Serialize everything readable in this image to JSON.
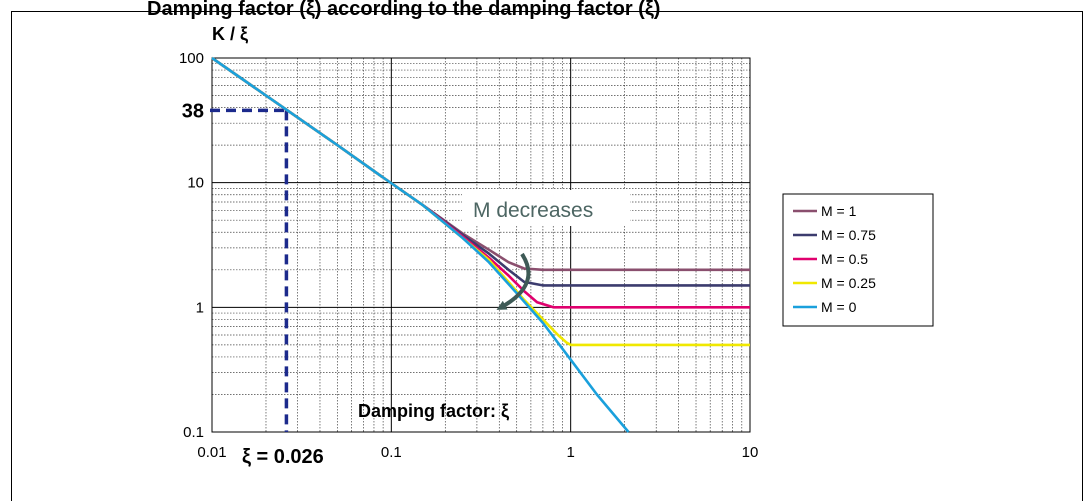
{
  "title_partial": "Damping factor (ξ) according to the damping factor (ξ)",
  "chart_data": {
    "type": "line",
    "title": "",
    "ylabel": "K / ξ",
    "xlabel": "Damping factor: ξ",
    "x_scale": "log",
    "y_scale": "log",
    "xlim": [
      0.01,
      10
    ],
    "ylim": [
      0.1,
      100
    ],
    "x_ticks": [
      "0.01",
      "0.1",
      "1",
      "10"
    ],
    "y_ticks": [
      "100",
      "10",
      "1",
      "0.1"
    ],
    "grid": true,
    "legend_position": "right",
    "series": [
      {
        "name": "M = 1",
        "color": "#8a4f6e",
        "x": [
          0.01,
          0.026,
          0.05,
          0.09,
          0.15,
          0.25,
          0.35,
          0.45,
          0.55,
          0.7,
          1,
          2,
          5,
          10
        ],
        "y": [
          100,
          38.5,
          20,
          11,
          6.6,
          3.9,
          2.9,
          2.3,
          2.05,
          2.0,
          2.0,
          2.0,
          2.0,
          2.0
        ]
      },
      {
        "name": "M = 0.75",
        "color": "#3c3c6e",
        "x": [
          0.01,
          0.026,
          0.05,
          0.09,
          0.15,
          0.25,
          0.35,
          0.45,
          0.55,
          0.7,
          1,
          2,
          5,
          10
        ],
        "y": [
          100,
          38.5,
          20,
          11,
          6.6,
          3.8,
          2.7,
          2.0,
          1.6,
          1.5,
          1.5,
          1.5,
          1.5,
          1.5
        ]
      },
      {
        "name": "M = 0.5",
        "color": "#e0006e",
        "x": [
          0.01,
          0.026,
          0.05,
          0.09,
          0.15,
          0.25,
          0.35,
          0.45,
          0.55,
          0.65,
          0.8,
          1,
          2,
          5,
          10
        ],
        "y": [
          100,
          38.5,
          20,
          11,
          6.6,
          3.7,
          2.5,
          1.8,
          1.35,
          1.1,
          1.0,
          1.0,
          1.0,
          1.0,
          1.0
        ]
      },
      {
        "name": "M = 0.25",
        "color": "#f0e800",
        "x": [
          0.01,
          0.026,
          0.05,
          0.09,
          0.15,
          0.25,
          0.35,
          0.45,
          0.55,
          0.7,
          0.85,
          0.95,
          1,
          2,
          5,
          10
        ],
        "y": [
          100,
          38.5,
          20,
          11,
          6.6,
          3.6,
          2.4,
          1.6,
          1.15,
          0.8,
          0.6,
          0.52,
          0.5,
          0.5,
          0.5,
          0.5
        ]
      },
      {
        "name": "M = 0",
        "color": "#1aa0dc",
        "x": [
          0.01,
          0.026,
          0.05,
          0.09,
          0.15,
          0.25,
          0.35,
          0.5,
          0.7,
          1,
          1.4,
          2.1
        ],
        "y": [
          100,
          38.5,
          20,
          11,
          6.6,
          3.6,
          2.3,
          1.3,
          0.75,
          0.38,
          0.2,
          0.1
        ]
      }
    ],
    "annotations": {
      "y_marker_label": "38",
      "y_marker_value": 38,
      "x_marker_label": "ξ = 0.026",
      "x_marker_value": 0.026,
      "trend_text": "M decreases"
    }
  }
}
